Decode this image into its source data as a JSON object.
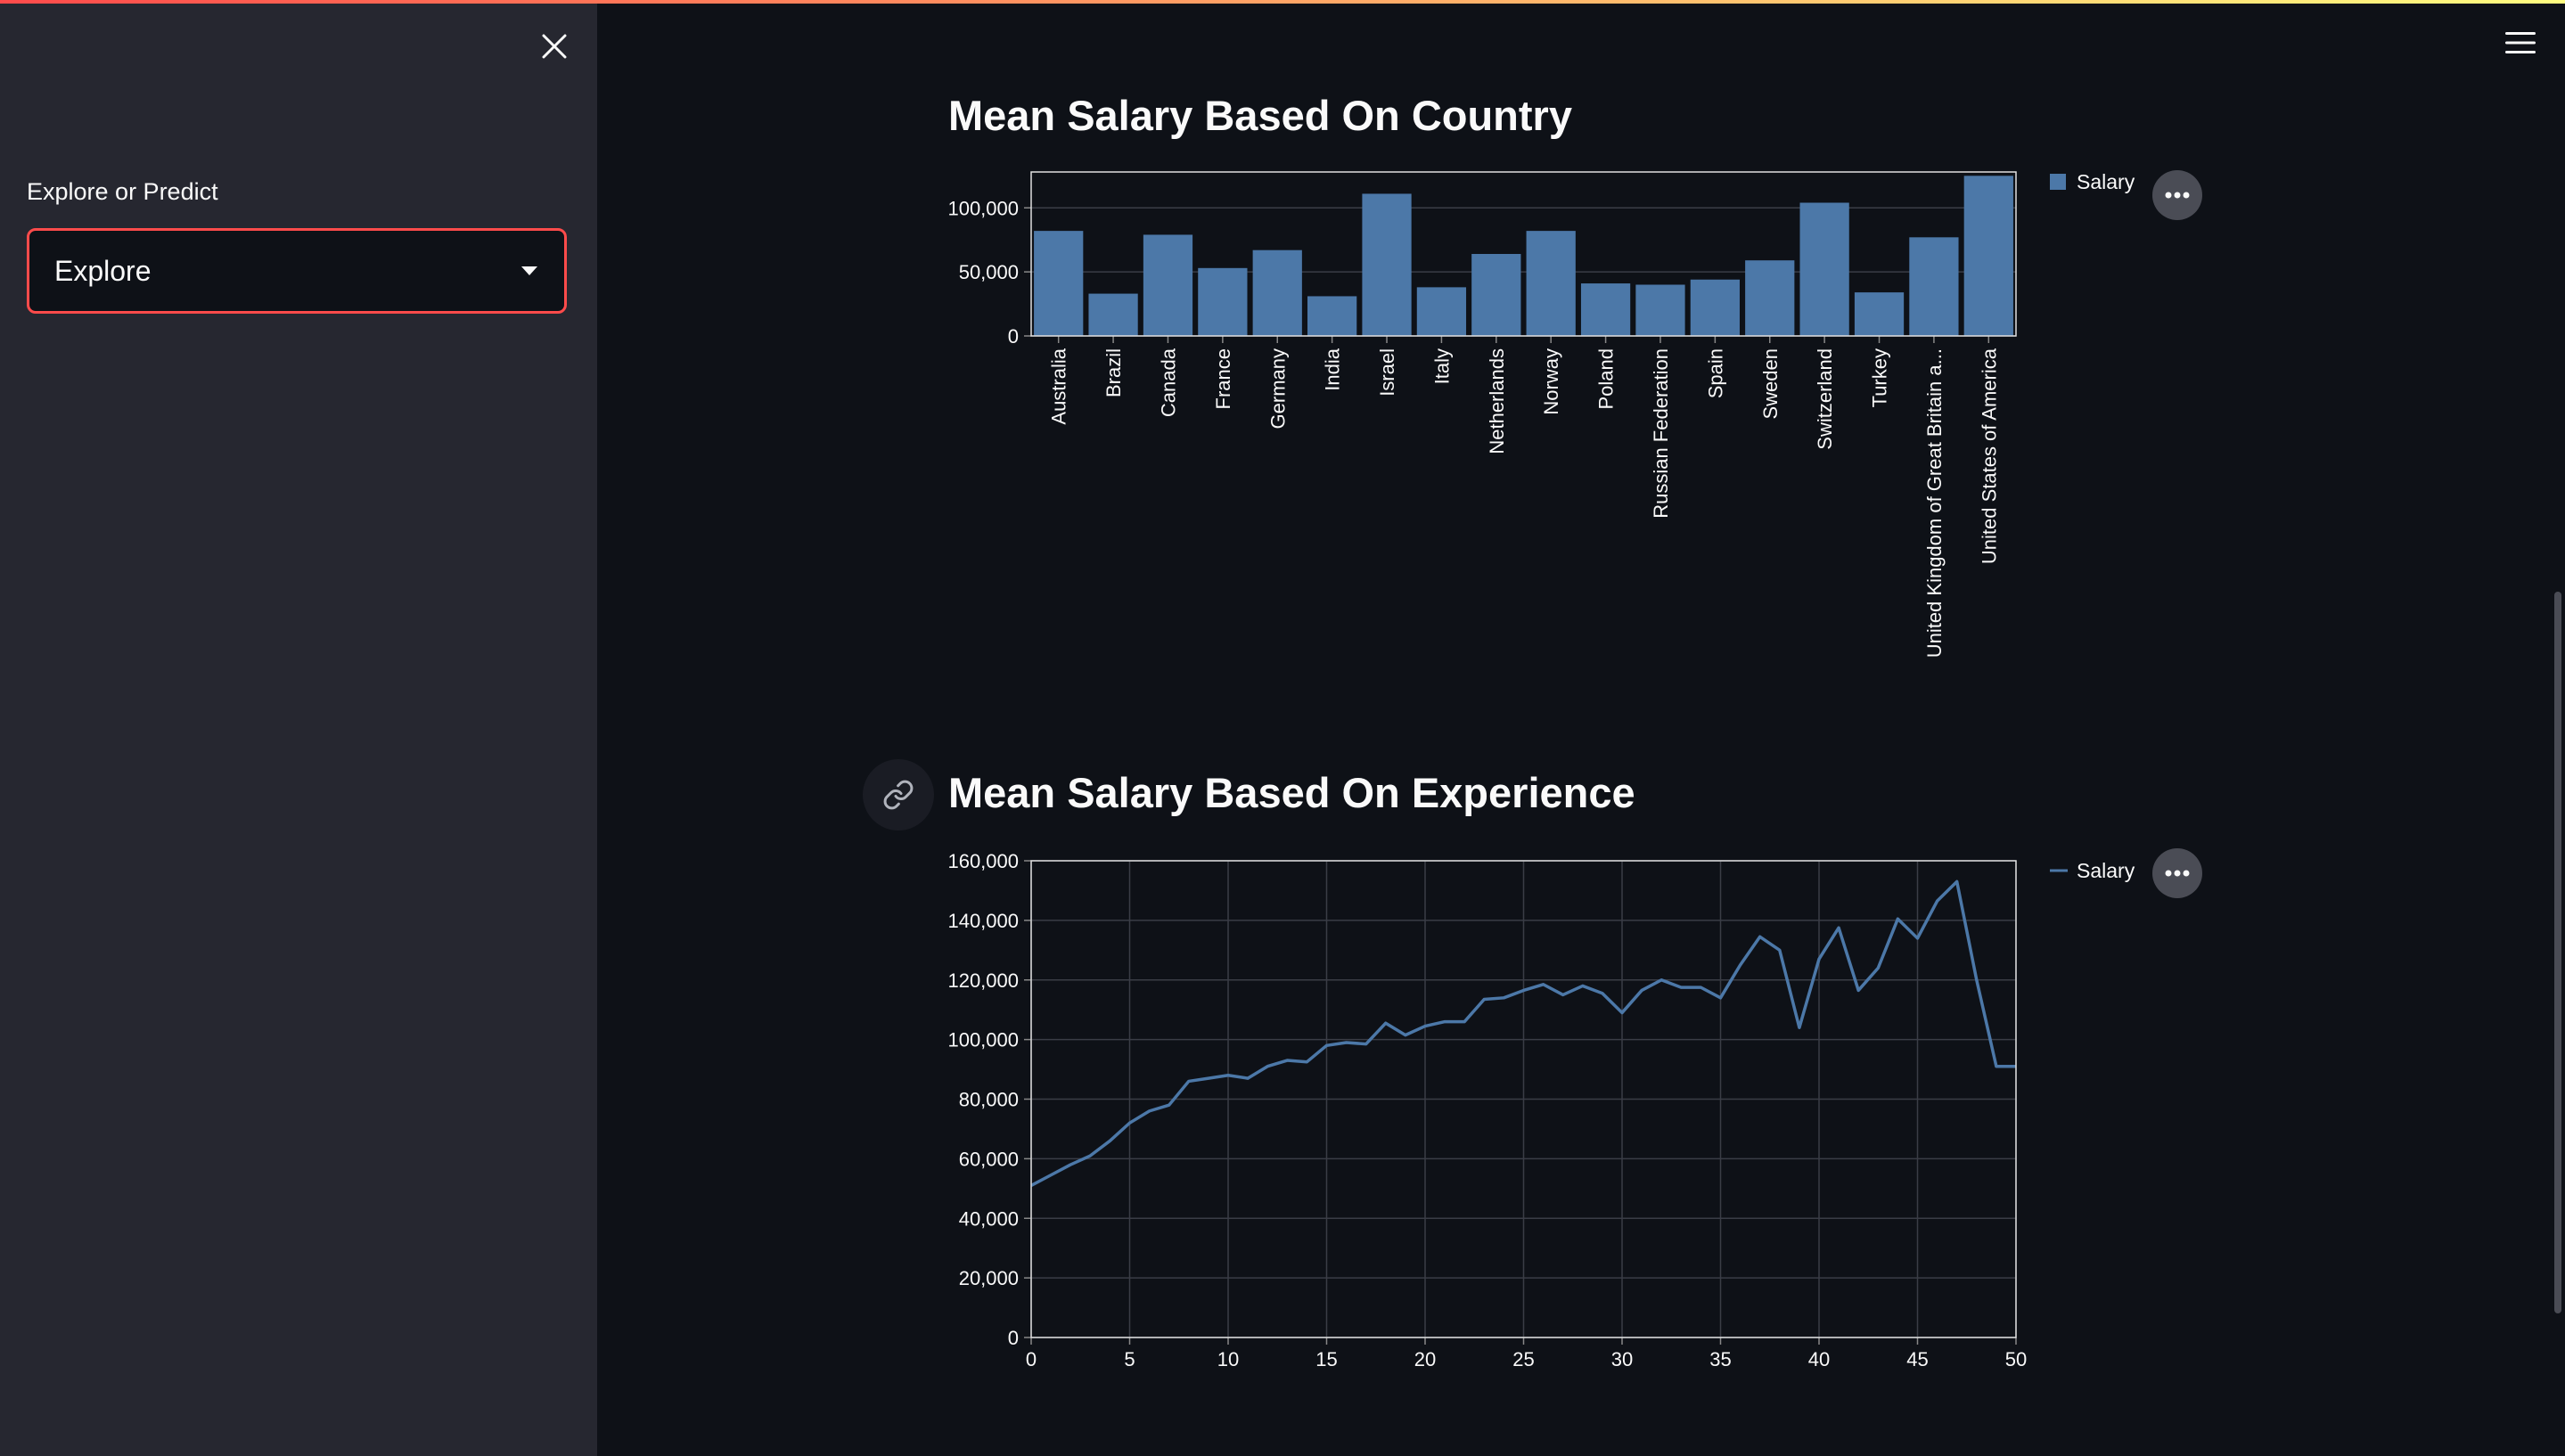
{
  "sidebar": {
    "select_label": "Explore or Predict",
    "select_value": "Explore"
  },
  "headings": {
    "country": "Mean Salary Based On Country",
    "experience": "Mean Salary Based On Experience"
  },
  "colors": {
    "accent": "#ff4b4b",
    "series": "#4c78a8",
    "background": "#0e1117",
    "sidebar": "#262730"
  },
  "icons": {
    "close": "close-icon",
    "menu": "hamburger-menu-icon",
    "caret": "chevron-down-icon",
    "link": "link-icon",
    "more": "more-options-icon"
  },
  "chart_data": [
    {
      "type": "bar",
      "categories": [
        "Australia",
        "Brazil",
        "Canada",
        "France",
        "Germany",
        "India",
        "Israel",
        "Italy",
        "Netherlands",
        "Norway",
        "Poland",
        "Russian Federation",
        "Spain",
        "Sweden",
        "Switzerland",
        "Turkey",
        "United Kingdom of Great Britain a...",
        "United States of America"
      ],
      "series": [
        {
          "name": "Salary",
          "values": [
            82000,
            33000,
            79000,
            53000,
            67000,
            31000,
            111000,
            38000,
            64000,
            82000,
            41000,
            40000,
            44000,
            59000,
            104000,
            34000,
            77000,
            125000
          ]
        }
      ],
      "ylim": [
        0,
        128000
      ],
      "yticks": [
        0,
        50000,
        100000
      ],
      "ytick_labels": [
        "0",
        "50,000",
        "100,000"
      ],
      "legend": {
        "label": "Salary",
        "position": "top-right"
      },
      "grid": true
    },
    {
      "type": "line",
      "x": [
        0,
        1,
        2,
        3,
        4,
        5,
        6,
        7,
        8,
        9,
        10,
        11,
        12,
        13,
        14,
        15,
        16,
        17,
        18,
        19,
        20,
        21,
        22,
        23,
        24,
        25,
        26,
        27,
        28,
        29,
        30,
        31,
        32,
        33,
        34,
        35,
        36,
        37,
        38,
        39,
        40,
        41,
        42,
        43,
        44,
        45,
        46,
        47,
        48,
        49,
        50
      ],
      "series": [
        {
          "name": "Salary",
          "values": [
            51000,
            54500,
            58000,
            61000,
            66000,
            72000,
            76000,
            78000,
            86000,
            87000,
            88000,
            87000,
            91000,
            93000,
            92500,
            98000,
            99000,
            98500,
            105500,
            101500,
            104500,
            106000,
            106000,
            113500,
            114000,
            116500,
            118500,
            115000,
            118000,
            115500,
            109000,
            116500,
            120000,
            117500,
            117500,
            114000,
            125000,
            134500,
            130000,
            104000,
            127000,
            137500,
            116500,
            124000,
            140500,
            134000,
            146500,
            153000,
            120000,
            91000,
            91000
          ]
        }
      ],
      "xlim": [
        0,
        50
      ],
      "ylim": [
        0,
        160000
      ],
      "xticks": [
        0,
        5,
        10,
        15,
        20,
        25,
        30,
        35,
        40,
        45,
        50
      ],
      "yticks": [
        0,
        20000,
        40000,
        60000,
        80000,
        100000,
        120000,
        140000,
        160000
      ],
      "ytick_labels": [
        "0",
        "20,000",
        "40,000",
        "60,000",
        "80,000",
        "100,000",
        "120,000",
        "140,000",
        "160,000"
      ],
      "legend": {
        "label": "Salary",
        "position": "top-right"
      },
      "grid": true
    }
  ]
}
